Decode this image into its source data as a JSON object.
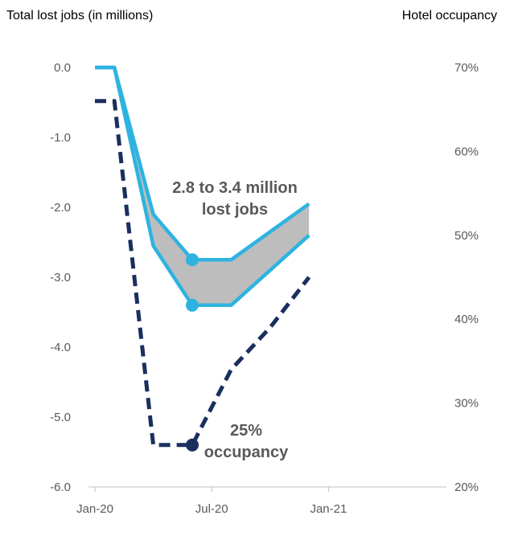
{
  "chart_data": {
    "type": "line",
    "left_axis_title": "Total lost jobs (in millions)",
    "right_axis_title": "Hotel occupancy",
    "x_ticks": [
      "Jan-20",
      "Jul-20",
      "Jan-21"
    ],
    "y_left_ticks": [
      "0.0",
      "-1.0",
      "-2.0",
      "-3.0",
      "-4.0",
      "-5.0",
      "-6.0"
    ],
    "y_right_ticks": [
      "70%",
      "60%",
      "50%",
      "40%",
      "30%",
      "20%"
    ],
    "ylim_left": [
      -6.0,
      0.0
    ],
    "ylim_right": [
      20,
      70
    ],
    "grid": false,
    "series": [
      {
        "axis": "left",
        "style": "solid",
        "color": "#2eb3e0",
        "points": [
          [
            "2020-01",
            0.0
          ],
          [
            "2020-02",
            0.0
          ],
          [
            "2020-04",
            -2.1
          ],
          [
            "2020-06",
            -2.75
          ],
          [
            "2020-08",
            -2.75
          ],
          [
            "2020-12",
            -1.95
          ]
        ]
      },
      {
        "axis": "left",
        "style": "solid",
        "color": "#2eb3e0",
        "points": [
          [
            "2020-01",
            0.0
          ],
          [
            "2020-02",
            0.0
          ],
          [
            "2020-04",
            -2.55
          ],
          [
            "2020-06",
            -3.4
          ],
          [
            "2020-08",
            -3.4
          ],
          [
            "2020-12",
            -2.4
          ]
        ]
      },
      {
        "axis": "right",
        "style": "dashed",
        "color": "#1a2f5e",
        "points": [
          [
            "2020-01",
            66
          ],
          [
            "2020-02",
            66
          ],
          [
            "2020-04",
            25
          ],
          [
            "2020-06",
            25
          ],
          [
            "2020-08",
            34
          ],
          [
            "2020-10",
            39
          ],
          [
            "2020-12",
            45
          ]
        ]
      }
    ],
    "markers": [
      {
        "series": 0,
        "x": "2020-06",
        "y": -2.75,
        "color": "#2eb3e0"
      },
      {
        "series": 1,
        "x": "2020-06",
        "y": -3.4,
        "color": "#2eb3e0"
      },
      {
        "series": 2,
        "x": "2020-06",
        "y": 25,
        "color": "#1a2f5e"
      }
    ],
    "band_between_series": [
      0,
      1
    ],
    "band_color": "#bdbdbd",
    "annotations": [
      {
        "lines": [
          "2.8 to 3.4 million",
          "lost jobs"
        ]
      },
      {
        "lines": [
          "25%",
          "occupancy"
        ]
      }
    ]
  }
}
